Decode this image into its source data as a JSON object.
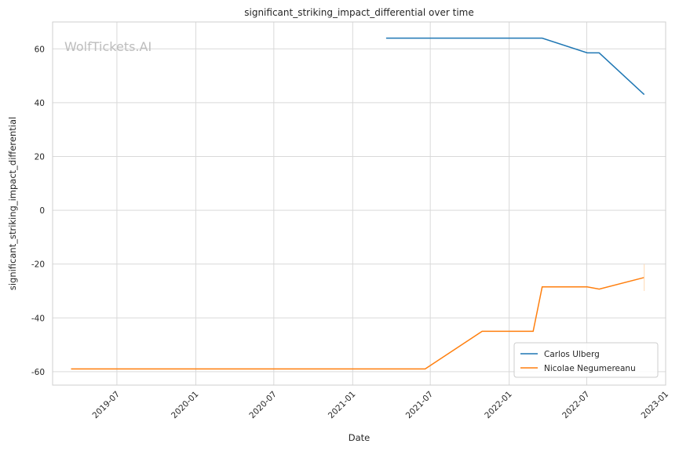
{
  "chart_data": {
    "type": "line",
    "title": "significant_striking_impact_differential over time",
    "xlabel": "Date",
    "ylabel": "significant_striking_impact_differential",
    "watermark": "WolfTickets.AI",
    "x_ticks": [
      "2019-07",
      "2020-01",
      "2020-07",
      "2021-01",
      "2021-07",
      "2022-01",
      "2022-07",
      "2023-01"
    ],
    "y_ticks": [
      -60,
      -40,
      -20,
      0,
      20,
      40,
      60
    ],
    "xlim": [
      "2019-02-01",
      "2023-01-01"
    ],
    "ylim": [
      -65,
      70
    ],
    "grid": true,
    "legend_position": "bottom-right",
    "series": [
      {
        "name": "Carlos Ulberg",
        "color": "#1f77b4",
        "points": [
          {
            "x": "2021-03-20",
            "y": 64
          },
          {
            "x": "2022-03-19",
            "y": 64
          },
          {
            "x": "2022-07-02",
            "y": 58.5
          },
          {
            "x": "2022-07-30",
            "y": 58.5
          },
          {
            "x": "2022-11-12",
            "y": 43
          }
        ]
      },
      {
        "name": "Nicolae Negumereanu",
        "color": "#ff7f0e",
        "points": [
          {
            "x": "2019-03-16",
            "y": -59
          },
          {
            "x": "2021-06-19",
            "y": -59
          },
          {
            "x": "2021-10-30",
            "y": -45
          },
          {
            "x": "2022-02-26",
            "y": -45
          },
          {
            "x": "2022-03-19",
            "y": -28.5
          },
          {
            "x": "2022-07-02",
            "y": -28.5
          },
          {
            "x": "2022-07-30",
            "y": -29.3
          },
          {
            "x": "2022-11-12",
            "y": -25
          }
        ]
      }
    ]
  }
}
